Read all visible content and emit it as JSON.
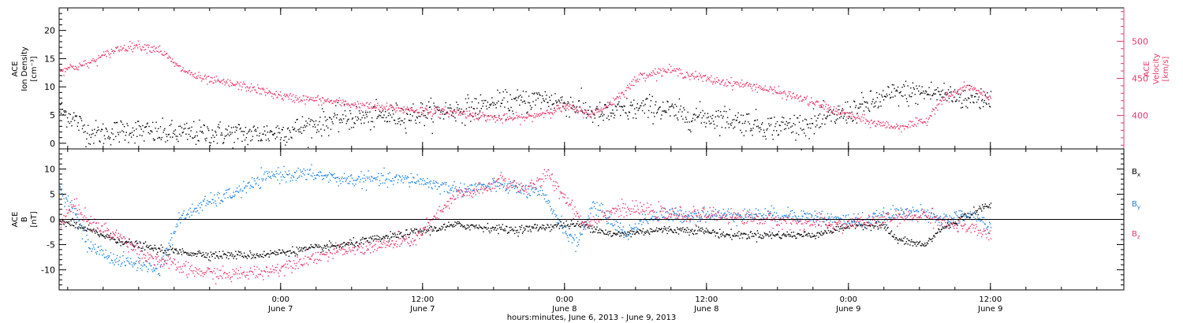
{
  "xaxis": {
    "ticks": [
      {
        "t": 0.78,
        "time": "0:00",
        "date": "June 7"
      },
      {
        "t": 1.28,
        "time": "12:00",
        "date": "June 7"
      },
      {
        "t": 1.78,
        "time": "0:00",
        "date": "June 8"
      },
      {
        "t": 2.28,
        "time": "12:00",
        "date": "June 8"
      },
      {
        "t": 2.78,
        "time": "0:00",
        "date": "June 9"
      },
      {
        "t": 3.28,
        "time": "12:00",
        "date": "June 9"
      }
    ],
    "label": "hours:minutes, June  6, 2013 - June  9, 2013"
  },
  "colors": {
    "axis": "#000000",
    "density": "#000000",
    "velocity": "#e8386b",
    "bx": "#000000",
    "by": "#1a82e0",
    "bz": "#e8386b"
  },
  "chart_data": [
    {
      "type": "scatter",
      "panel": "plasma",
      "ylabel": [
        "ACE",
        "Ion Density",
        "[cm⁻³]"
      ],
      "ylabel_right": [
        "ACE",
        "Velocity",
        "[km/s]"
      ],
      "ylim": [
        -1,
        24
      ],
      "ylim_right": [
        355,
        545
      ],
      "yticks": [
        0,
        5,
        10,
        15,
        20
      ],
      "yticks_right": [
        400,
        450,
        500
      ],
      "series": [
        {
          "key": "density",
          "axis": "left",
          "knots": [
            [
              0.0,
              6
            ],
            [
              0.05,
              4.5
            ],
            [
              0.1,
              2
            ],
            [
              0.15,
              1.8
            ],
            [
              0.25,
              2.5
            ],
            [
              0.35,
              1.8
            ],
            [
              0.55,
              1.8
            ],
            [
              0.7,
              1.7
            ],
            [
              0.8,
              2.2
            ],
            [
              0.9,
              3.5
            ],
            [
              1.0,
              4.5
            ],
            [
              1.2,
              5
            ],
            [
              1.4,
              6
            ],
            [
              1.55,
              7
            ],
            [
              1.7,
              8
            ],
            [
              1.8,
              7
            ],
            [
              1.9,
              5
            ],
            [
              2.0,
              6
            ],
            [
              2.1,
              6.5
            ],
            [
              2.2,
              5
            ],
            [
              2.35,
              4.5
            ],
            [
              2.5,
              3
            ],
            [
              2.65,
              3.5
            ],
            [
              2.8,
              6
            ],
            [
              2.95,
              9
            ],
            [
              3.1,
              9
            ],
            [
              3.2,
              8
            ],
            [
              3.28,
              8
            ]
          ],
          "noise": 2.2,
          "step": 0.0025
        },
        {
          "key": "velocity",
          "axis": "right",
          "knots": [
            [
              0.0,
              462
            ],
            [
              0.1,
              470
            ],
            [
              0.2,
              490
            ],
            [
              0.27,
              495
            ],
            [
              0.35,
              490
            ],
            [
              0.42,
              465
            ],
            [
              0.5,
              450
            ],
            [
              0.65,
              440
            ],
            [
              0.8,
              425
            ],
            [
              0.95,
              420
            ],
            [
              1.1,
              412
            ],
            [
              1.25,
              408
            ],
            [
              1.4,
              405
            ],
            [
              1.55,
              396
            ],
            [
              1.65,
              398
            ],
            [
              1.78,
              412
            ],
            [
              1.88,
              402
            ],
            [
              1.95,
              420
            ],
            [
              2.05,
              455
            ],
            [
              2.15,
              462
            ],
            [
              2.3,
              448
            ],
            [
              2.45,
              440
            ],
            [
              2.6,
              425
            ],
            [
              2.75,
              405
            ],
            [
              2.85,
              392
            ],
            [
              2.95,
              385
            ],
            [
              3.05,
              392
            ],
            [
              3.1,
              420
            ],
            [
              3.2,
              440
            ],
            [
              3.28,
              422
            ]
          ],
          "noise": 6,
          "step": 0.0025
        }
      ]
    },
    {
      "type": "scatter",
      "panel": "magnetic",
      "ylabel": [
        "ACE",
        "B",
        "[nT]"
      ],
      "ylim": [
        -14,
        14
      ],
      "yticks": [
        -10,
        -5,
        0,
        5,
        10
      ],
      "zero_line": true,
      "legend": [
        {
          "text": "B",
          "sub": "x",
          "key": "bx"
        },
        {
          "text": "B",
          "sub": "y",
          "key": "by"
        },
        {
          "text": "B",
          "sub": "z",
          "key": "bz"
        }
      ],
      "series": [
        {
          "key": "bx",
          "knots": [
            [
              0.0,
              0
            ],
            [
              0.1,
              -2
            ],
            [
              0.2,
              -4
            ],
            [
              0.35,
              -6
            ],
            [
              0.55,
              -7
            ],
            [
              0.7,
              -7
            ],
            [
              0.85,
              -6
            ],
            [
              1.0,
              -5
            ],
            [
              1.2,
              -3
            ],
            [
              1.4,
              -1
            ],
            [
              1.6,
              -2
            ],
            [
              1.78,
              -1
            ],
            [
              1.85,
              -1
            ],
            [
              1.95,
              -3
            ],
            [
              2.1,
              -2
            ],
            [
              2.25,
              -2
            ],
            [
              2.35,
              -3
            ],
            [
              2.55,
              -3
            ],
            [
              2.65,
              -3
            ],
            [
              2.8,
              -1
            ],
            [
              2.9,
              -1
            ],
            [
              2.95,
              -4
            ],
            [
              3.05,
              -5
            ],
            [
              3.1,
              -2
            ],
            [
              3.2,
              1
            ],
            [
              3.28,
              3
            ]
          ],
          "noise": 0.8,
          "step": 0.0025
        },
        {
          "key": "by",
          "knots": [
            [
              0.0,
              6
            ],
            [
              0.05,
              2
            ],
            [
              0.1,
              -5
            ],
            [
              0.2,
              -8
            ],
            [
              0.3,
              -9
            ],
            [
              0.35,
              -10
            ],
            [
              0.42,
              0
            ],
            [
              0.5,
              3
            ],
            [
              0.6,
              5
            ],
            [
              0.68,
              7
            ],
            [
              0.75,
              9
            ],
            [
              0.9,
              9
            ],
            [
              1.0,
              8
            ],
            [
              1.15,
              8
            ],
            [
              1.25,
              8
            ],
            [
              1.4,
              6
            ],
            [
              1.55,
              7
            ],
            [
              1.7,
              5
            ],
            [
              1.78,
              -2
            ],
            [
              1.82,
              -5
            ],
            [
              1.88,
              3
            ],
            [
              2.0,
              -3
            ],
            [
              2.05,
              0
            ],
            [
              2.15,
              1
            ],
            [
              2.25,
              1
            ],
            [
              2.45,
              1
            ],
            [
              2.6,
              1
            ],
            [
              2.75,
              0
            ],
            [
              2.85,
              0
            ],
            [
              3.0,
              2
            ],
            [
              3.1,
              0
            ],
            [
              3.2,
              1
            ],
            [
              3.28,
              -1
            ]
          ],
          "noise": 1.4,
          "step": 0.0025
        },
        {
          "key": "bz",
          "knots": [
            [
              0.0,
              -1
            ],
            [
              0.05,
              3
            ],
            [
              0.12,
              -1
            ],
            [
              0.2,
              -3
            ],
            [
              0.3,
              -7
            ],
            [
              0.45,
              -10
            ],
            [
              0.6,
              -11
            ],
            [
              0.75,
              -10
            ],
            [
              0.85,
              -8
            ],
            [
              1.0,
              -6
            ],
            [
              1.15,
              -5
            ],
            [
              1.25,
              -4
            ],
            [
              1.4,
              5
            ],
            [
              1.5,
              6
            ],
            [
              1.55,
              8
            ],
            [
              1.65,
              6
            ],
            [
              1.72,
              9
            ],
            [
              1.8,
              3
            ],
            [
              1.85,
              -1
            ],
            [
              1.95,
              2
            ],
            [
              2.05,
              2
            ],
            [
              2.15,
              1
            ],
            [
              2.3,
              1
            ],
            [
              2.5,
              0
            ],
            [
              2.75,
              -1
            ],
            [
              2.9,
              0
            ],
            [
              3.05,
              1
            ],
            [
              3.15,
              -1
            ],
            [
              3.28,
              -3
            ]
          ],
          "noise": 1.4,
          "step": 0.0025
        }
      ]
    }
  ]
}
